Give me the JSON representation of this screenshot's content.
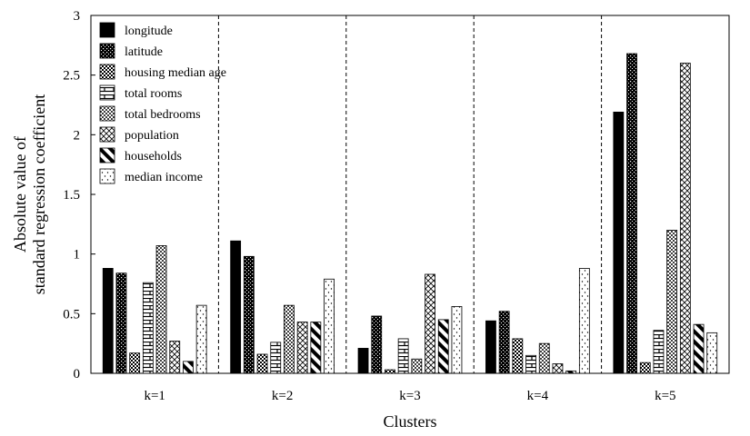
{
  "chart_data": {
    "type": "bar",
    "title": "",
    "xlabel": "Clusters",
    "ylabel_lines": [
      "Absolute value of",
      "standard regression coefficient"
    ],
    "ylim": [
      0,
      3
    ],
    "yticks": [
      "0",
      "0.5",
      "1",
      "1.5",
      "2",
      "2.5",
      "3"
    ],
    "categories": [
      "k=1",
      "k=2",
      "k=3",
      "k=4",
      "k=5"
    ],
    "legend_position": "top-left",
    "cluster_separators": "dashed",
    "series": [
      {
        "name": "longitude",
        "pattern": "solid",
        "values": [
          0.88,
          1.11,
          0.21,
          0.44,
          2.19
        ]
      },
      {
        "name": "latitude",
        "pattern": "dense-dots",
        "values": [
          0.84,
          0.98,
          0.48,
          0.52,
          2.68
        ]
      },
      {
        "name": "housing median age",
        "pattern": "checker",
        "values": [
          0.17,
          0.16,
          0.03,
          0.29,
          0.09
        ]
      },
      {
        "name": "total rooms",
        "pattern": "brick",
        "values": [
          0.76,
          0.26,
          0.29,
          0.15,
          0.36
        ]
      },
      {
        "name": "total bedrooms",
        "pattern": "dots",
        "values": [
          1.07,
          0.57,
          0.12,
          0.25,
          1.2
        ]
      },
      {
        "name": "population",
        "pattern": "crosshatch",
        "values": [
          0.27,
          0.43,
          0.83,
          0.08,
          2.6
        ]
      },
      {
        "name": "households",
        "pattern": "diagonal",
        "values": [
          0.1,
          0.43,
          0.45,
          0.02,
          0.41
        ]
      },
      {
        "name": "median income",
        "pattern": "sparse-dots",
        "values": [
          0.57,
          0.79,
          0.56,
          0.88,
          0.34
        ]
      }
    ]
  }
}
